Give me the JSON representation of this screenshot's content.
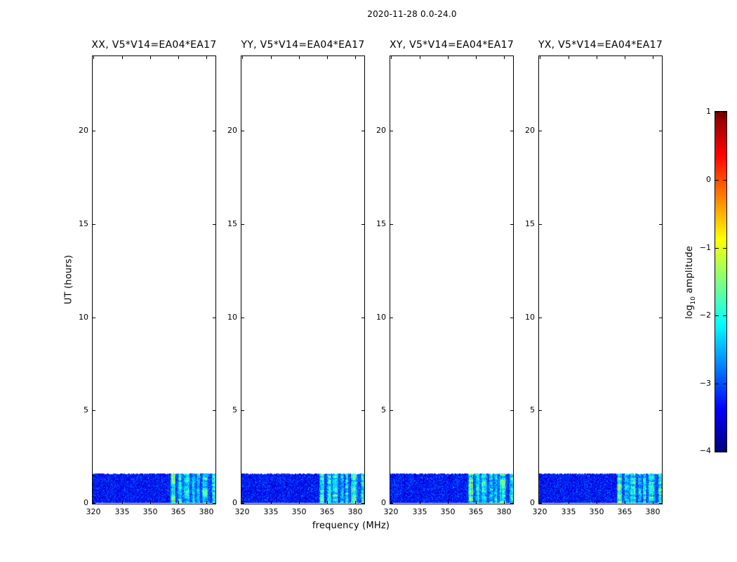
{
  "figure": {
    "suptitle": "2020-11-28 0.0-24.0",
    "background": "#ffffff"
  },
  "chart_data": {
    "type": "heatmap",
    "panels": [
      {
        "title": "XX, V5*V14=EA04*EA17"
      },
      {
        "title": "YY, V5*V14=EA04*EA17"
      },
      {
        "title": "XY, V5*V14=EA04*EA17"
      },
      {
        "title": "YX, V5*V14=EA04*EA17"
      }
    ],
    "x_axis": {
      "label": "frequency (MHz)",
      "range": [
        319.5,
        384.8
      ],
      "ticks": [
        320,
        335,
        350,
        365,
        380
      ]
    },
    "y_axis": {
      "label": "UT (hours)",
      "range": [
        0,
        24
      ],
      "ticks": [
        0,
        5,
        10,
        15,
        20
      ]
    },
    "colorbar": {
      "label_pre": "log",
      "label_sub": "10",
      "label_post": " amplitude",
      "range": [
        -4,
        1
      ],
      "ticks": [
        1,
        0,
        -1,
        -2,
        -3,
        -4
      ],
      "colormap": "jet",
      "stops": [
        [
          0.0,
          "#000080"
        ],
        [
          0.125,
          "#0000ff"
        ],
        [
          0.375,
          "#00ffff"
        ],
        [
          0.625,
          "#ffff00"
        ],
        [
          0.875,
          "#ff0000"
        ],
        [
          1.0,
          "#800000"
        ]
      ]
    },
    "data_band": {
      "ut_start": 0.04,
      "ut_end": 1.63,
      "base_log_amp": -3.3,
      "noise_amplitude": 0.45,
      "elevated_region": {
        "f0": 361.0,
        "f1": 384.8,
        "boost": 0.3
      },
      "rfi_stripes": [
        {
          "f0": 361.0,
          "f1": 363.6,
          "boost": 1.35
        },
        {
          "f0": 365.0,
          "f1": 367.2,
          "boost": 1.0
        },
        {
          "f0": 367.8,
          "f1": 370.9,
          "boost": 1.05
        },
        {
          "f0": 372.0,
          "f1": 374.0,
          "boost": 0.85
        },
        {
          "f0": 374.6,
          "f1": 376.6,
          "boost": 0.9
        },
        {
          "f0": 377.6,
          "f1": 380.9,
          "boost": 1.1
        },
        {
          "f0": 383.0,
          "f1": 384.8,
          "boost": 1.25
        }
      ],
      "speck_probability": 0.003,
      "speck_log_amp": -1.9
    }
  }
}
